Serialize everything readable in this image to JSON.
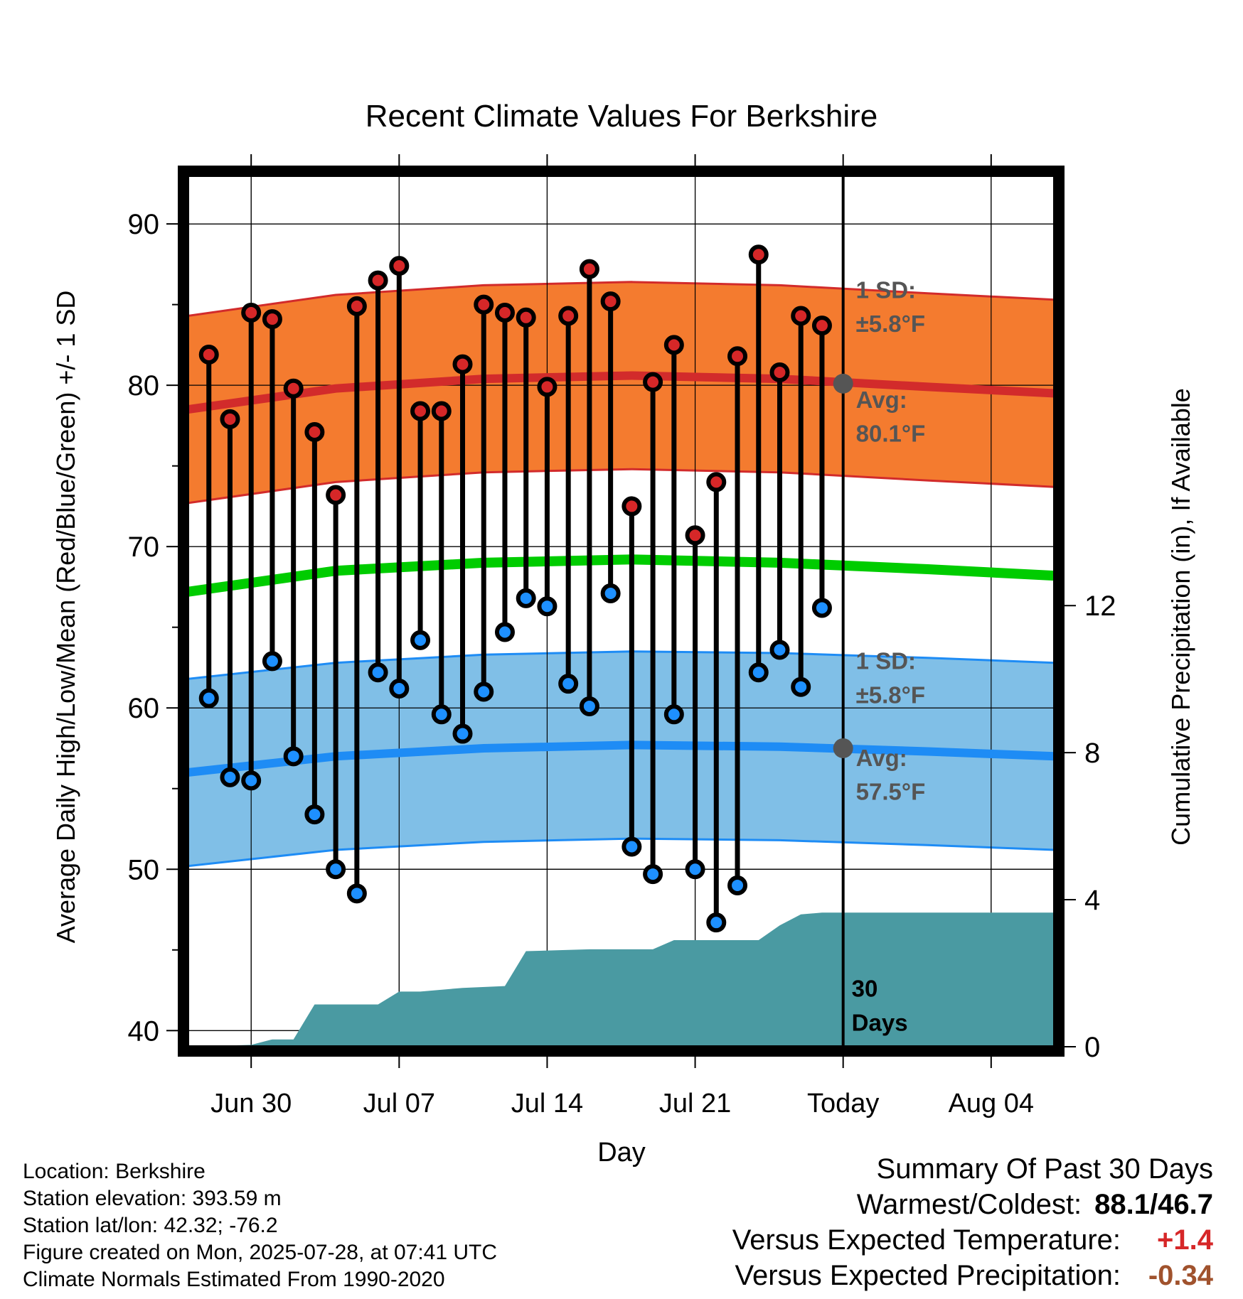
{
  "chart_data": {
    "type": "line",
    "title": "Recent Climate Values For Berkshire",
    "xlabel": "Day",
    "ylabel": "Average Daily High/Low/Mean (Red/Blue/Green) +/- 1 SD",
    "y2label": "Cumulative Precipitation (in), If Available",
    "ylim": [
      39,
      93
    ],
    "y2lim": [
      0,
      23.7
    ],
    "yticks": [
      "40",
      "50",
      "60",
      "70",
      "80",
      "90"
    ],
    "y2ticks": [
      "0",
      "4",
      "8",
      "12"
    ],
    "xlim": [
      "2025-06-27",
      "2025-08-07"
    ],
    "xticks": [
      {
        "date": "2025-06-30",
        "label": "Jun 30"
      },
      {
        "date": "2025-07-07",
        "label": "Jul 07"
      },
      {
        "date": "2025-07-14",
        "label": "Jul 14"
      },
      {
        "date": "2025-07-21",
        "label": "Jul 21"
      },
      {
        "date": "2025-07-28",
        "label": "Today"
      },
      {
        "date": "2025-08-04",
        "label": "Aug 04"
      }
    ],
    "grid": true,
    "today": "2025-07-28",
    "today_label": "30\nDays",
    "daily": {
      "dates": [
        "2025-06-28",
        "2025-06-29",
        "2025-06-30",
        "2025-07-01",
        "2025-07-02",
        "2025-07-03",
        "2025-07-04",
        "2025-07-05",
        "2025-07-06",
        "2025-07-07",
        "2025-07-08",
        "2025-07-09",
        "2025-07-10",
        "2025-07-11",
        "2025-07-12",
        "2025-07-13",
        "2025-07-14",
        "2025-07-15",
        "2025-07-16",
        "2025-07-17",
        "2025-07-18",
        "2025-07-19",
        "2025-07-20",
        "2025-07-21",
        "2025-07-22",
        "2025-07-23",
        "2025-07-24",
        "2025-07-25",
        "2025-07-26",
        "2025-07-27"
      ],
      "high": [
        81.9,
        77.9,
        84.5,
        84.1,
        79.8,
        77.1,
        73.2,
        84.9,
        86.5,
        87.4,
        78.4,
        78.4,
        81.3,
        85.0,
        84.5,
        84.2,
        79.9,
        84.3,
        87.2,
        85.2,
        72.5,
        80.2,
        82.5,
        70.7,
        74.0,
        81.8,
        88.1,
        80.8,
        84.3,
        83.7
      ],
      "low": [
        60.6,
        55.7,
        55.5,
        62.9,
        57.0,
        53.4,
        50.0,
        48.5,
        62.2,
        61.2,
        64.2,
        59.6,
        58.4,
        61.0,
        64.7,
        66.8,
        66.3,
        61.5,
        60.1,
        67.1,
        51.4,
        49.7,
        59.6,
        50.0,
        46.7,
        49.0,
        62.2,
        63.6,
        61.3,
        66.2
      ]
    },
    "normals": {
      "dates": [
        "2025-06-27",
        "2025-07-04",
        "2025-07-11",
        "2025-07-18",
        "2025-07-25",
        "2025-08-01",
        "2025-08-07"
      ],
      "high_avg": [
        78.5,
        79.8,
        80.4,
        80.6,
        80.4,
        79.9,
        79.5
      ],
      "low_avg": [
        56.0,
        57.0,
        57.5,
        57.7,
        57.6,
        57.3,
        57.0
      ],
      "mean": [
        67.2,
        68.5,
        69.0,
        69.2,
        69.0,
        68.6,
        68.2
      ],
      "sd": 5.8
    },
    "high_annotation": {
      "sd_line1": "1 SD:",
      "sd_line2": "±5.8°F",
      "avg_line1": "Avg:",
      "avg_line2": "80.1°F",
      "avg_value": 80.1
    },
    "low_annotation": {
      "sd_line1": "1 SD:",
      "sd_line2": "±5.8°F",
      "avg_line1": "Avg:",
      "avg_line2": "57.5°F",
      "avg_value": 57.5
    },
    "precipitation": {
      "dates": [
        "2025-06-27",
        "2025-06-30",
        "2025-07-01",
        "2025-07-02",
        "2025-07-03",
        "2025-07-06",
        "2025-07-07",
        "2025-07-08",
        "2025-07-10",
        "2025-07-12",
        "2025-07-13",
        "2025-07-16",
        "2025-07-19",
        "2025-07-20",
        "2025-07-24",
        "2025-07-25",
        "2025-07-26",
        "2025-07-27",
        "2025-07-28",
        "2025-08-07"
      ],
      "values": [
        0,
        0.05,
        0.2,
        0.2,
        1.15,
        1.15,
        1.5,
        1.5,
        1.6,
        1.65,
        2.6,
        2.65,
        2.65,
        2.9,
        2.9,
        3.3,
        3.6,
        3.65,
        3.65,
        3.65
      ]
    },
    "colors": {
      "high_band": "#f47b2f",
      "high_line": "#d22b2b",
      "low_band": "#80bfe7",
      "low_line": "#1e8cf5",
      "mean_line": "#00cc00",
      "precip": "#4a9aa2",
      "high_dot": "#d62728",
      "low_dot": "#1e90ff",
      "annotation": "#555555",
      "warm_text": "#d62728",
      "precip_text": "#a0522d"
    }
  },
  "footer": {
    "location": "Location: Berkshire",
    "elevation": "Station elevation: 393.59 m",
    "latlon": "Station lat/lon: 42.32; -76.2",
    "created": "Figure created on Mon, 2025-07-28, at 07:41 UTC",
    "normals": "Climate Normals Estimated From 1990-2020"
  },
  "summary": {
    "title": "Summary Of Past 30 Days",
    "warmest_label": "Warmest/Coldest:",
    "warmest_value": "88.1/46.7",
    "temp_label": "Versus Expected Temperature:",
    "temp_value": "+1.4",
    "precip_label": "Versus Expected Precipitation:",
    "precip_value": "-0.34"
  }
}
